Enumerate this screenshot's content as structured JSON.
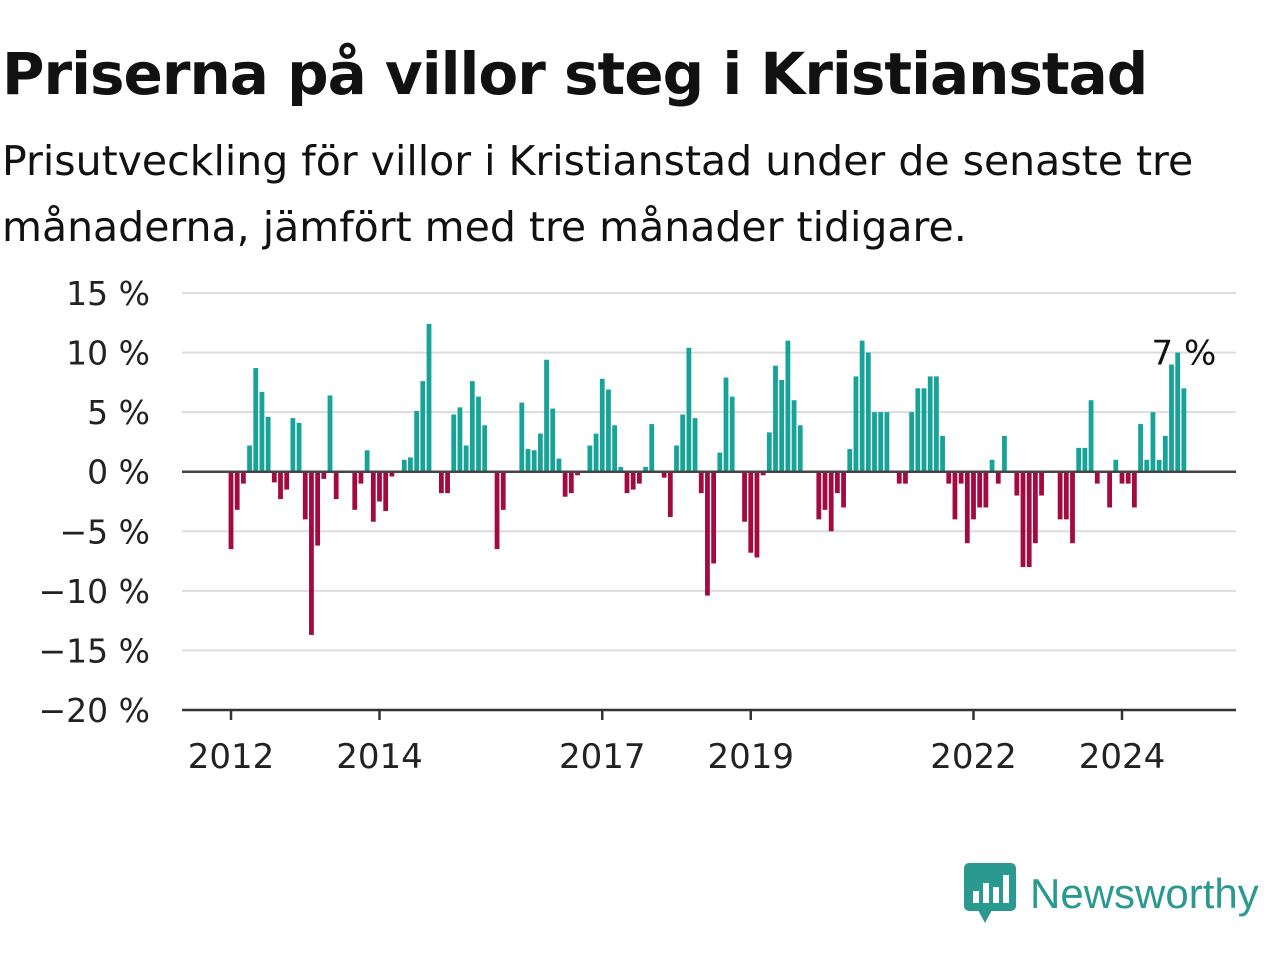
{
  "title": "Priserna på villor steg i Kristianstad",
  "subtitle": "Prisutveckling för villor i Kristianstad under de senaste tre månaderna, jämfört med tre månader tidigare.",
  "brand": {
    "name": "Newsworthy",
    "logo_icon": "newsworthy-chart-bubble-icon"
  },
  "colors": {
    "positive": "#17a398",
    "negative": "#a30a3f",
    "grid": "#dddddd",
    "zero_line": "#444444",
    "axis": "#333333"
  },
  "chart_data": {
    "type": "bar",
    "title": "Priserna på villor steg i Kristianstad",
    "subtitle": "Prisutveckling för villor i Kristianstad under de senaste tre månaderna, jämfört med tre månader tidigare.",
    "unit": "%",
    "x_start": "2012-01",
    "x_end": "2025-03",
    "ylim": [
      -20,
      15
    ],
    "yticks": [
      15,
      10,
      5,
      0,
      -5,
      -10,
      -15,
      -20
    ],
    "ytick_labels": [
      "15 %",
      "10 %",
      "5 %",
      "0 %",
      "−5 %",
      "−10 %",
      "−15 %",
      "−20 %"
    ],
    "xticks": [
      "2012",
      "2014",
      "2017",
      "2019",
      "2022",
      "2024"
    ],
    "grid": true,
    "last_value_label": "7 %",
    "values": [
      -6.5,
      -3.2,
      -1.0,
      2.2,
      8.7,
      6.7,
      4.6,
      -0.9,
      -2.3,
      -1.5,
      4.5,
      4.1,
      -4.0,
      -13.7,
      -6.2,
      -0.6,
      6.4,
      -2.3,
      0.0,
      0.0,
      -3.2,
      -1.0,
      1.8,
      -4.2,
      -2.5,
      -3.3,
      -0.4,
      0.0,
      1.0,
      1.2,
      5.1,
      7.6,
      12.4,
      0.0,
      -1.8,
      -1.8,
      4.8,
      5.4,
      2.2,
      7.6,
      6.3,
      3.9,
      0.0,
      -6.5,
      -3.2,
      0.0,
      0.0,
      5.8,
      1.9,
      1.8,
      3.2,
      9.4,
      5.3,
      1.1,
      -2.1,
      -1.8,
      -0.3,
      0.0,
      2.2,
      3.2,
      7.8,
      6.9,
      3.9,
      0.4,
      -1.8,
      -1.5,
      -1.0,
      0.4,
      4.0,
      0.0,
      -0.5,
      -3.8,
      2.2,
      4.8,
      10.4,
      4.5,
      -1.8,
      -10.4,
      -7.7,
      1.6,
      7.9,
      6.3,
      0.0,
      -4.2,
      -6.8,
      -7.2,
      -0.3,
      3.3,
      8.9,
      7.7,
      11.0,
      6.0,
      3.9,
      0.0,
      0.0,
      -4.0,
      -3.2,
      -5.0,
      -1.8,
      -3.0,
      1.9,
      8.0,
      11.0,
      10.0,
      5.0,
      5.0,
      5.0,
      0.0,
      -1.0,
      -1.0,
      5.0,
      7.0,
      7.0,
      8.0,
      8.0,
      3.0,
      -1.0,
      -4.0,
      -1.0,
      -6.0,
      -4.0,
      -3.0,
      -3.0,
      1.0,
      -1.0,
      3.0,
      0.0,
      -2.0,
      -8.0,
      -8.0,
      -6.0,
      -2.0,
      0.0,
      0.0,
      -4.0,
      -4.0,
      -6.0,
      2.0,
      2.0,
      6.0,
      -1.0,
      0.0,
      -3.0,
      1.0,
      -1.0,
      -1.0,
      -3.0,
      4.0,
      1.0,
      5.0,
      1.0,
      3.0,
      9.0,
      10.0,
      7.0
    ]
  }
}
